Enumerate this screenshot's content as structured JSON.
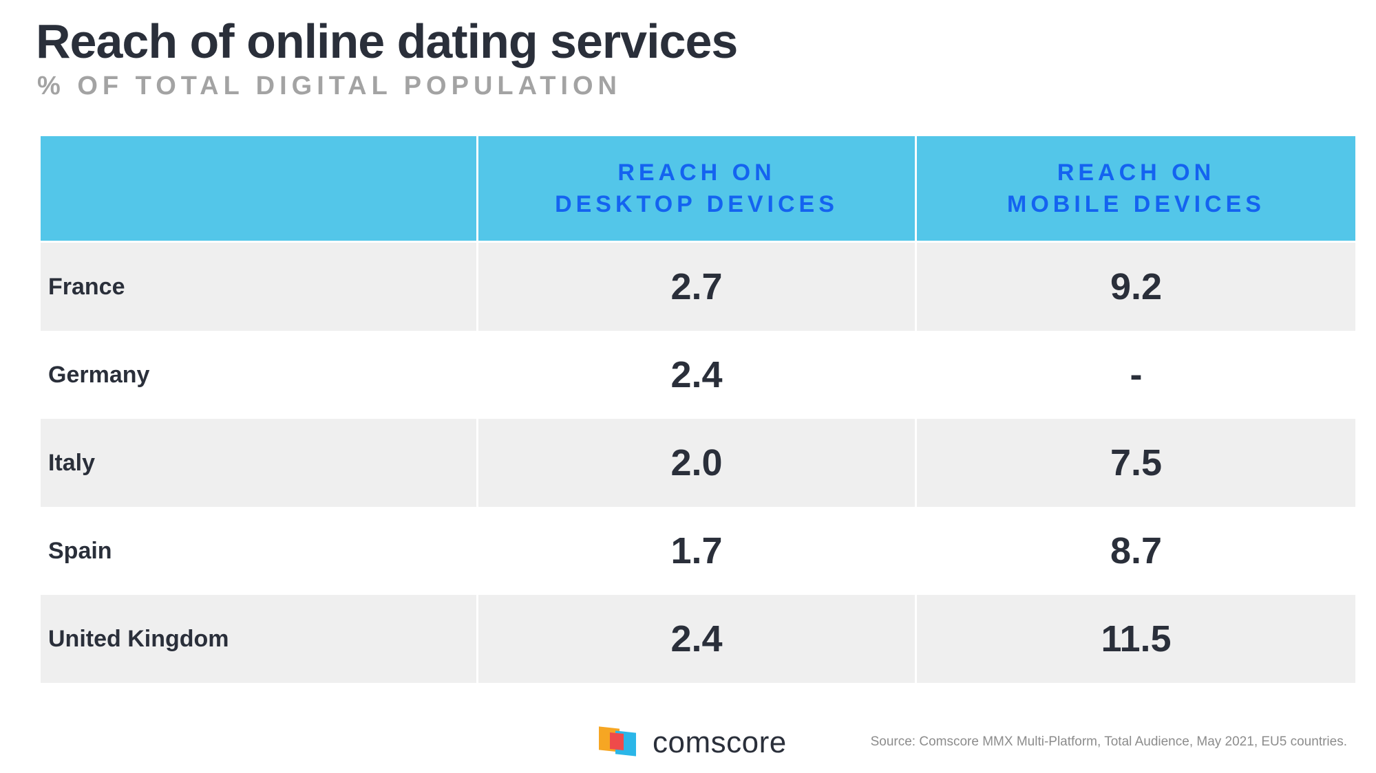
{
  "title": "Reach of online dating services",
  "subtitle": "% OF TOTAL DIGITAL POPULATION",
  "chart_data": {
    "type": "table",
    "columns": [
      {
        "line1": "",
        "line2": ""
      },
      {
        "line1": "REACH ON",
        "line2": "DESKTOP DEVICES"
      },
      {
        "line1": "REACH ON",
        "line2": "MOBILE DEVICES"
      }
    ],
    "rows": [
      {
        "country": "France",
        "desktop": "2.7",
        "mobile": "9.2"
      },
      {
        "country": "Germany",
        "desktop": "2.4",
        "mobile": "-"
      },
      {
        "country": "Italy",
        "desktop": "2.0",
        "mobile": "7.5"
      },
      {
        "country": "Spain",
        "desktop": "1.7",
        "mobile": "8.7"
      },
      {
        "country": "United Kingdom",
        "desktop": "2.4",
        "mobile": "11.5"
      }
    ]
  },
  "logo": {
    "text": "comscore"
  },
  "source": "Source: Comscore MMX Multi-Platform, Total Audience, May 2021, EU5 countries.",
  "colors": {
    "header_bg": "#53c6e9",
    "header_text": "#1463f0",
    "row_shade": "#efefef",
    "text_dark": "#2a2f3a",
    "subtitle": "#a3a3a3"
  }
}
